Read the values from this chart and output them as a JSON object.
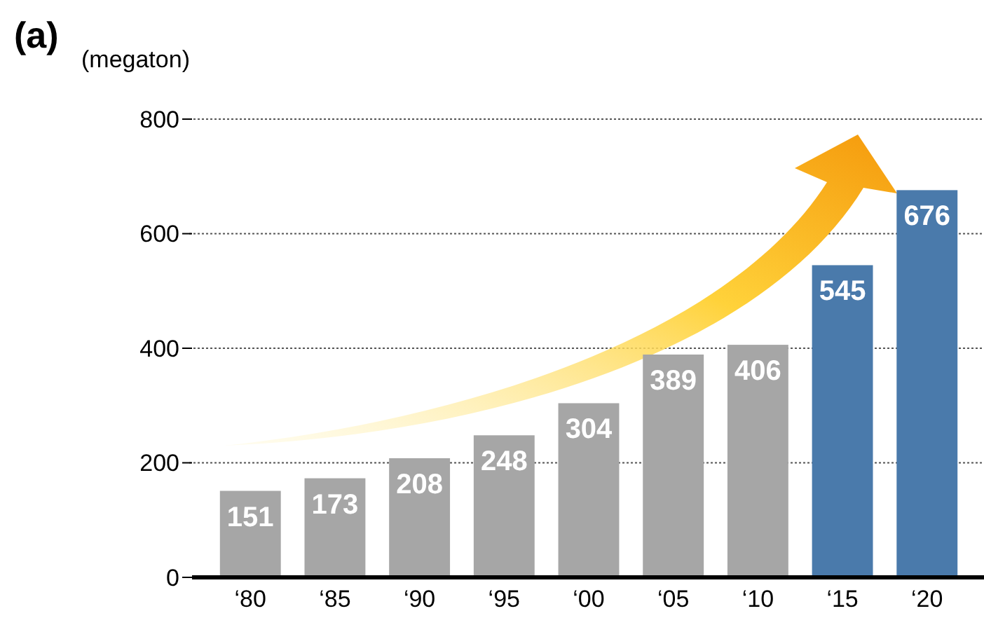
{
  "chart_data": {
    "type": "bar",
    "title": "(a)",
    "ylabel": "(megaton)",
    "categories": [
      "‘80",
      "‘85",
      "‘90",
      "‘95",
      "‘00",
      "‘05",
      "‘10",
      "‘15",
      "‘20"
    ],
    "values": [
      151,
      173,
      208,
      248,
      304,
      389,
      406,
      545,
      676
    ],
    "colors": [
      "#a6a6a6",
      "#a6a6a6",
      "#a6a6a6",
      "#a6a6a6",
      "#a6a6a6",
      "#a6a6a6",
      "#a6a6a6",
      "#4a7aab",
      "#4a7aab"
    ],
    "ylim": [
      0,
      800
    ],
    "yticks": [
      0,
      200,
      400,
      600,
      800
    ],
    "grid": "y",
    "data_labels": true
  }
}
